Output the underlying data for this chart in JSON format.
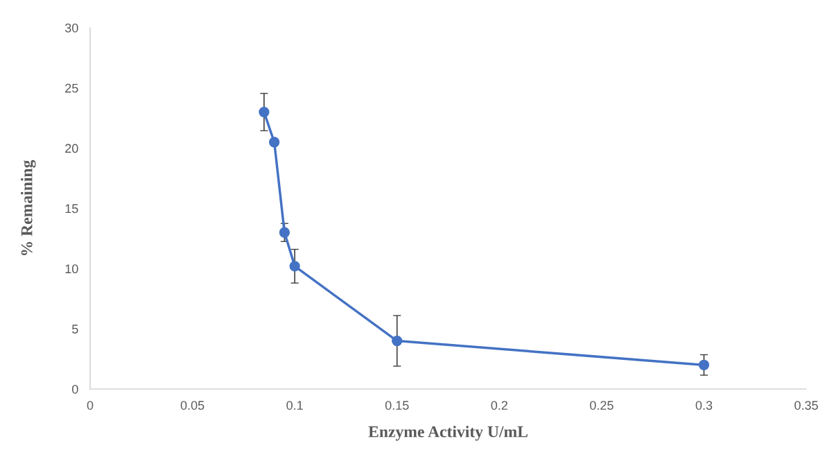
{
  "chart_data": {
    "type": "line",
    "xlabel": "Enzyme Activity U/mL",
    "ylabel": "% Remaining",
    "x": [
      0.085,
      0.09,
      0.095,
      0.1,
      0.15,
      0.3
    ],
    "series": [
      {
        "color": "#4472c4",
        "values": [
          23,
          20.5,
          13,
          10.2,
          4,
          2
        ],
        "errors": [
          1.55,
          null,
          0.75,
          1.4,
          2.1,
          0.85
        ]
      }
    ],
    "xlim": [
      0,
      0.35
    ],
    "xticks": [
      0,
      0.05,
      0.1,
      0.15,
      0.2,
      0.25,
      0.3,
      0.35
    ],
    "ylim": [
      0,
      30
    ],
    "yticks": [
      0,
      5,
      10,
      15,
      20,
      25,
      30
    ],
    "grid": false,
    "legend": false,
    "marker": "circle",
    "line_style": "solid"
  }
}
